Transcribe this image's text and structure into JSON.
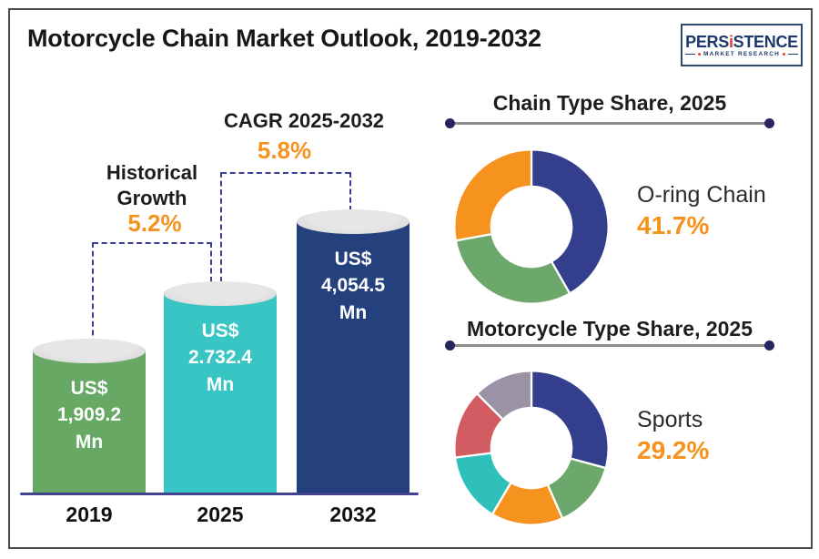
{
  "header": {
    "title": "Motorcycle Chain Market Outlook, 2019-2032",
    "logo": {
      "brand_pre": "PERS",
      "brand_i": "i",
      "brand_post": "STENCE",
      "subtitle": "MARKET RESEARCH"
    }
  },
  "colors": {
    "accent_orange": "#f6921e",
    "dashed_bracket": "#3b3f94",
    "axis_line": "#42428e",
    "bar_cap_gray": "#dcdcdc",
    "frame_border": "#4a4a4a",
    "divider_dot_navy": "#27255f",
    "logo_navy": "#1e3a6d",
    "logo_red": "#e03c31",
    "text_dark": "#1d1d1d"
  },
  "chart_data": [
    {
      "type": "bar",
      "categories": [
        "2019",
        "2025",
        "2032"
      ],
      "values": [
        1909.2,
        2732.4,
        4054.5
      ],
      "unit": "US$ Mn",
      "bar_labels": [
        [
          "US$",
          "1,909.2",
          "Mn"
        ],
        [
          "US$",
          "2.732.4",
          "Mn"
        ],
        [
          "US$",
          "4,054.5",
          "Mn"
        ]
      ],
      "bar_colors": [
        "#67a865",
        "#38c5c4",
        "#24417d"
      ],
      "annotations": {
        "historical": {
          "label": "Historical Growth",
          "value": "5.2%"
        },
        "cagr": {
          "label": "CAGR 2025-2032",
          "value": "5.8%"
        }
      }
    },
    {
      "type": "donut",
      "title": "Chain Type Share, 2025",
      "legend_position": "right",
      "segments": [
        {
          "label": "O-ring Chain",
          "value": 41.7,
          "color": "#333e8c"
        },
        {
          "label": "",
          "value": 30.4,
          "color": "#6ca86b"
        },
        {
          "label": "",
          "value": 27.9,
          "color": "#f6921e"
        }
      ],
      "callout": {
        "label": "O-ring Chain",
        "value": "41.7%"
      }
    },
    {
      "type": "donut",
      "title": "Motorcycle Type Share, 2025",
      "legend_position": "right",
      "segments": [
        {
          "label": "Sports",
          "value": 29.2,
          "color": "#333e8c"
        },
        {
          "label": "",
          "value": 14.2,
          "color": "#6ca86b"
        },
        {
          "label": "",
          "value": 15.1,
          "color": "#f6921e"
        },
        {
          "label": "",
          "value": 14.5,
          "color": "#2fc0bc"
        },
        {
          "label": "",
          "value": 14.5,
          "color": "#d25c62"
        },
        {
          "label": "",
          "value": 12.5,
          "color": "#9a93a6"
        }
      ],
      "callout": {
        "label": "Sports",
        "value": "29.2%"
      }
    }
  ]
}
